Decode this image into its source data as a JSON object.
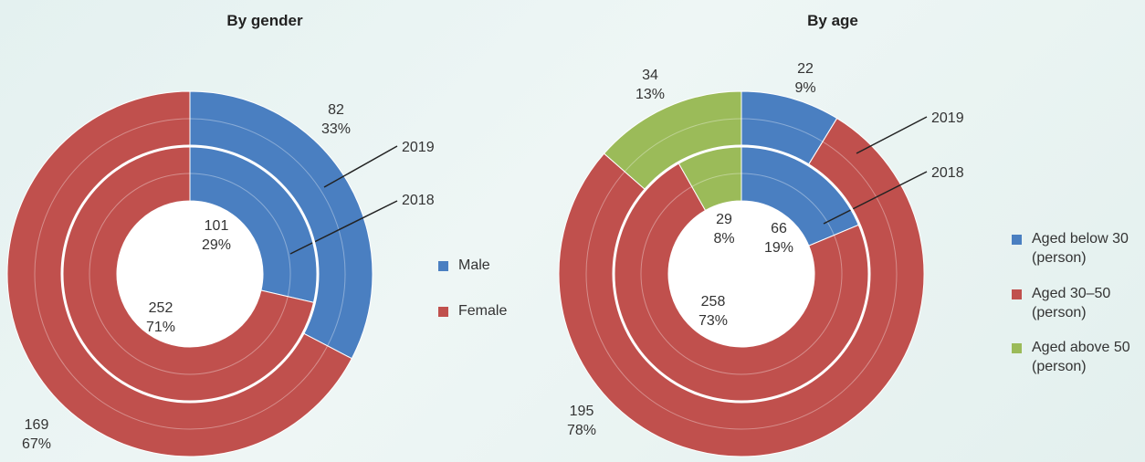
{
  "chart_data": [
    {
      "type": "pie",
      "title": "By gender",
      "categories": [
        "Male",
        "Female"
      ],
      "colors": [
        "#4a7fc1",
        "#c0504d"
      ],
      "series": [
        {
          "name": "2019",
          "values": [
            82,
            169
          ],
          "shares": [
            33,
            67
          ],
          "share_labels": [
            "33%",
            "67%"
          ]
        },
        {
          "name": "2018",
          "values": [
            101,
            252
          ],
          "shares": [
            29,
            71
          ],
          "share_labels": [
            "29%",
            "71%"
          ]
        }
      ]
    },
    {
      "type": "pie",
      "title": "By age",
      "categories": [
        "Aged below 30 (person)",
        "Aged 30–50 (person)",
        "Aged above 50 (person)"
      ],
      "colors": [
        "#4a7fc1",
        "#c0504d",
        "#9bbb59"
      ],
      "series": [
        {
          "name": "2019",
          "values": [
            22,
            195,
            34
          ],
          "shares": [
            9,
            78,
            13
          ],
          "share_labels": [
            "9%",
            "78%",
            "13%"
          ]
        },
        {
          "name": "2018",
          "values": [
            66,
            258,
            29
          ],
          "shares": [
            19,
            73,
            8
          ],
          "share_labels": [
            "19%",
            "73%",
            "8%"
          ]
        }
      ]
    }
  ]
}
